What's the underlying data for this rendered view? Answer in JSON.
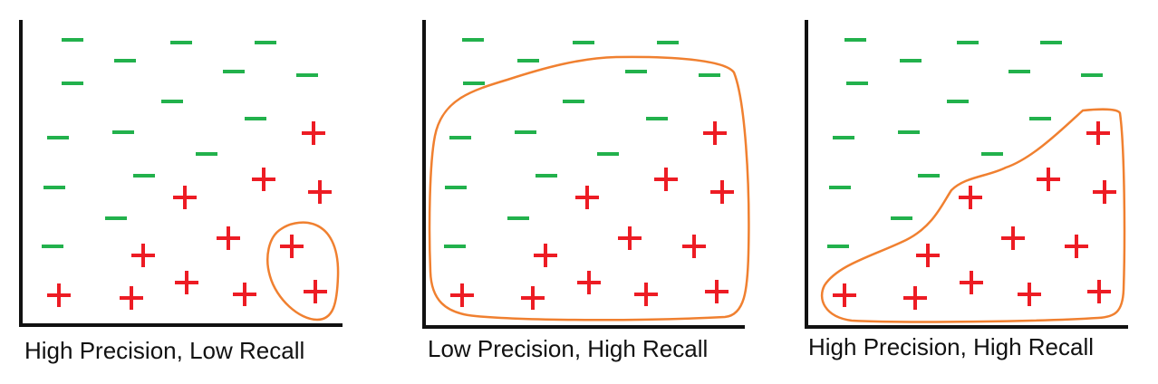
{
  "colors": {
    "axis": "#111111",
    "negative": "#22b14c",
    "positive": "#ed1c24",
    "selection": "#f08030"
  },
  "icons": {
    "negative": "minus-sign-icon",
    "positive": "plus-sign-icon"
  },
  "panels": [
    {
      "caption": "High Precision, Low Recall",
      "negatives": [
        [
          80,
          44
        ],
        [
          200,
          47
        ],
        [
          293,
          47
        ],
        [
          138,
          67
        ],
        [
          258,
          79
        ],
        [
          339,
          83
        ],
        [
          80,
          92
        ],
        [
          190,
          112
        ],
        [
          282,
          131
        ],
        [
          64,
          152
        ],
        [
          136,
          146
        ],
        [
          228,
          170
        ],
        [
          159,
          194
        ],
        [
          60,
          207
        ],
        [
          128,
          241
        ],
        [
          58,
          272
        ]
      ],
      "positives": [
        [
          346,
          147
        ],
        [
          291,
          198
        ],
        [
          204,
          218
        ],
        [
          353,
          212
        ],
        [
          252,
          263
        ],
        [
          158,
          282
        ],
        [
          322,
          272
        ],
        [
          65,
          326
        ],
        [
          145,
          329
        ],
        [
          206,
          312
        ],
        [
          270,
          325
        ],
        [
          348,
          322
        ]
      ]
    },
    {
      "caption": "Low Precision, High Recall",
      "negatives": [
        [
          522,
          44
        ],
        [
          644,
          47
        ],
        [
          737,
          47
        ],
        [
          583,
          67
        ],
        [
          702,
          79
        ],
        [
          783,
          83
        ],
        [
          523,
          92
        ],
        [
          633,
          112
        ],
        [
          725,
          131
        ],
        [
          508,
          152
        ],
        [
          580,
          146
        ],
        [
          671,
          170
        ],
        [
          603,
          194
        ],
        [
          503,
          207
        ],
        [
          572,
          241
        ],
        [
          502,
          272
        ]
      ],
      "positives": [
        [
          789,
          147
        ],
        [
          735,
          198
        ],
        [
          648,
          218
        ],
        [
          797,
          212
        ],
        [
          695,
          263
        ],
        [
          602,
          282
        ],
        [
          766,
          272
        ],
        [
          510,
          326
        ],
        [
          588,
          329
        ],
        [
          650,
          312
        ],
        [
          713,
          325
        ],
        [
          791,
          322
        ]
      ]
    },
    {
      "caption": "High Precision, High Recall",
      "negatives": [
        [
          944,
          44
        ],
        [
          1068,
          47
        ],
        [
          1160,
          47
        ],
        [
          1005,
          67
        ],
        [
          1125,
          79
        ],
        [
          1205,
          83
        ],
        [
          946,
          92
        ],
        [
          1057,
          112
        ],
        [
          1148,
          131
        ],
        [
          931,
          152
        ],
        [
          1003,
          146
        ],
        [
          1095,
          170
        ],
        [
          1025,
          194
        ],
        [
          927,
          207
        ],
        [
          995,
          241
        ],
        [
          925,
          272
        ]
      ],
      "positives": [
        [
          1212,
          147
        ],
        [
          1157,
          198
        ],
        [
          1071,
          218
        ],
        [
          1219,
          212
        ],
        [
          1118,
          263
        ],
        [
          1024,
          282
        ],
        [
          1188,
          272
        ],
        [
          932,
          326
        ],
        [
          1010,
          329
        ],
        [
          1072,
          312
        ],
        [
          1136,
          325
        ],
        [
          1213,
          322
        ]
      ]
    }
  ]
}
